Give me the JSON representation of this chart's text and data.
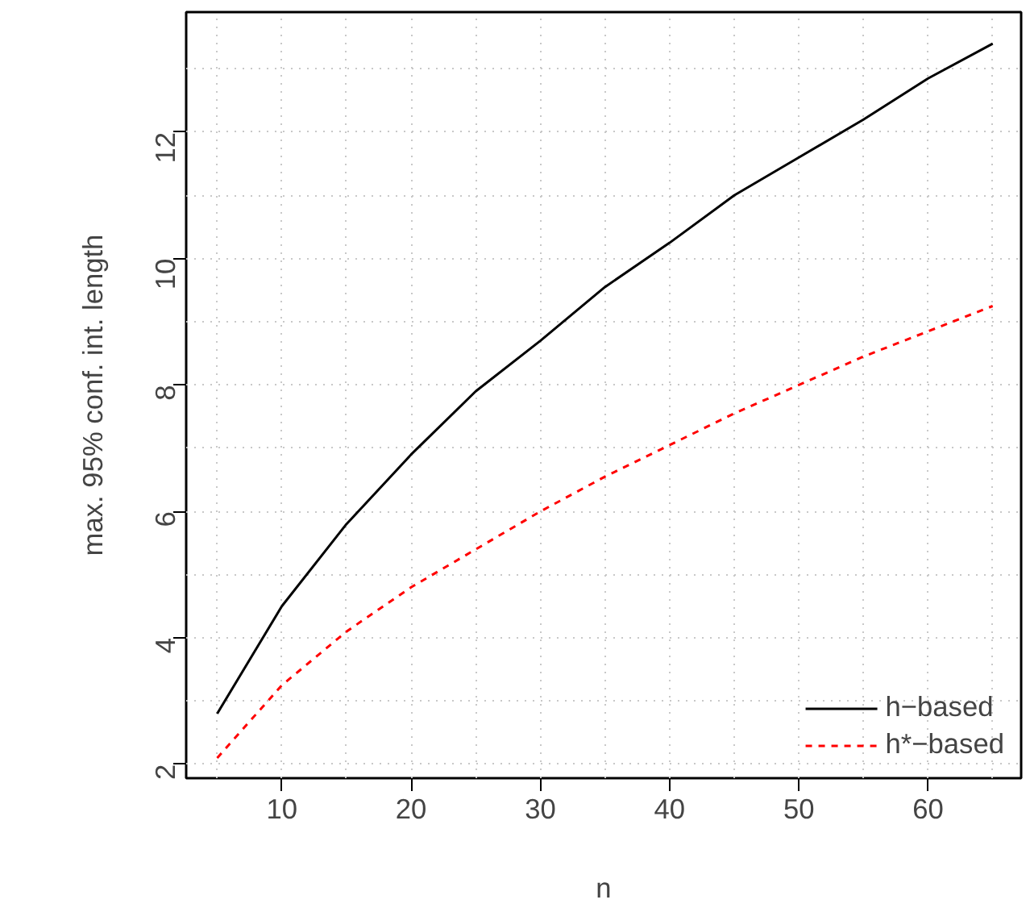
{
  "chart_data": {
    "type": "line",
    "xlabel": "n",
    "ylabel": "max. 95% conf. int. length",
    "x": [
      5,
      10,
      15,
      20,
      25,
      30,
      35,
      40,
      45,
      50,
      55,
      60,
      65
    ],
    "series": [
      {
        "name": "h−based",
        "color": "#000000",
        "line_style": "solid",
        "values": [
          2.8,
          4.5,
          5.8,
          6.9,
          7.9,
          8.7,
          9.55,
          10.25,
          11.0,
          11.6,
          12.2,
          12.85,
          13.4
        ]
      },
      {
        "name": "h*−based",
        "color": "#ff0000",
        "line_style": "dashed",
        "values": [
          2.1,
          3.25,
          4.1,
          4.8,
          5.4,
          6.0,
          6.55,
          7.05,
          7.55,
          8.0,
          8.45,
          8.85,
          9.25
        ]
      }
    ],
    "xlim": [
      2.6,
      67.2
    ],
    "ylim": [
      1.78,
      13.9
    ],
    "xticks": [
      10,
      20,
      30,
      40,
      50,
      60
    ],
    "yticks": [
      2,
      4,
      6,
      8,
      10,
      12
    ],
    "grid": true,
    "legend": "bottom right",
    "marker": "none"
  }
}
